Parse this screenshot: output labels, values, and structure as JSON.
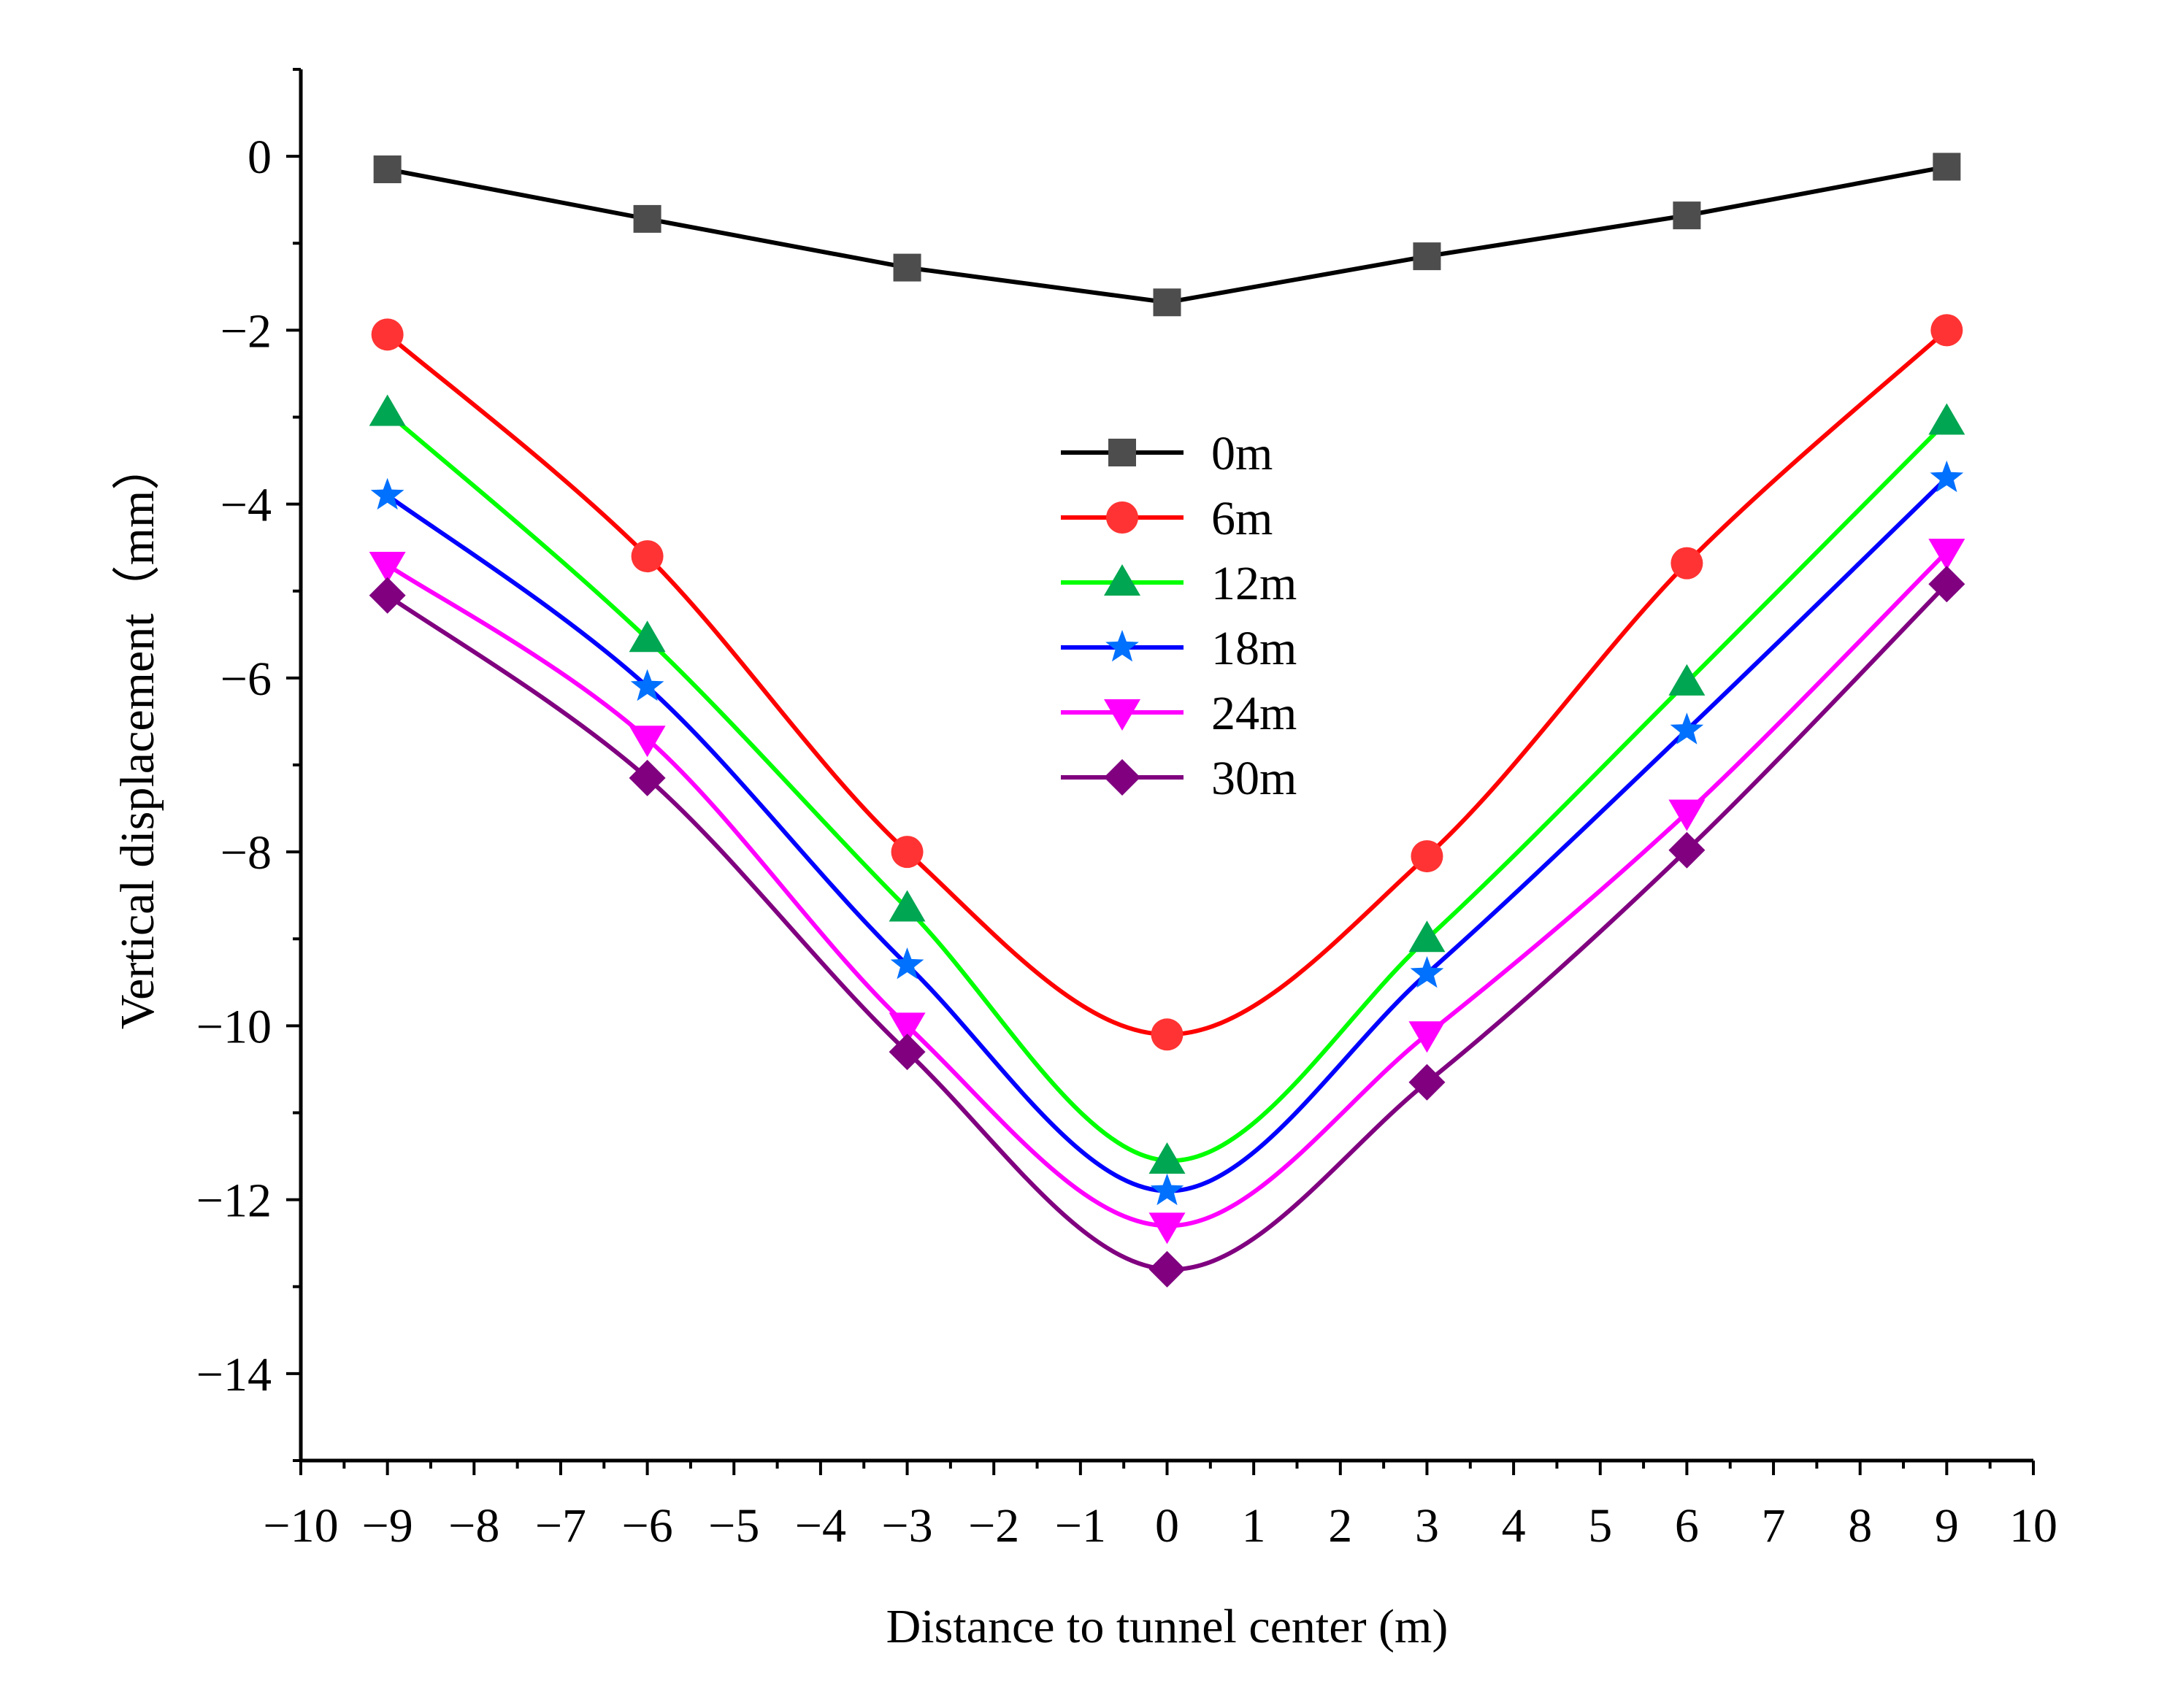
{
  "chart_data": {
    "type": "line",
    "title": "",
    "xlabel": "Distance to tunnel center (m)",
    "ylabel": "Vertical displacement（mm）",
    "xlim": [
      -10,
      10
    ],
    "ylim": [
      -15,
      1
    ],
    "xticks": [
      -10,
      -9,
      -8,
      -7,
      -6,
      -5,
      -4,
      -3,
      -2,
      -1,
      0,
      1,
      2,
      3,
      4,
      5,
      6,
      7,
      8,
      9,
      10
    ],
    "xtick_labels": [
      "−10",
      "−9",
      "−8",
      "−7",
      "−6",
      "−5",
      "−4",
      "−3",
      "−2",
      "−1",
      "0",
      "1",
      "2",
      "3",
      "4",
      "5",
      "6",
      "7",
      "8",
      "9",
      "10"
    ],
    "yticks": [
      0,
      -2,
      -4,
      -6,
      -8,
      -10,
      -12,
      -14
    ],
    "ytick_labels": [
      "0",
      "−2",
      "−4",
      "−6",
      "−8",
      "−10",
      "−12",
      "−14"
    ],
    "grid": false,
    "legend_position": "center",
    "x": [
      -9,
      -6,
      -3,
      0,
      3,
      6,
      9
    ],
    "series": [
      {
        "name": "0m",
        "color": "#000000",
        "marker_color": "#4d4d4d",
        "marker": "square",
        "values": [
          -0.15,
          -0.72,
          -1.28,
          -1.68,
          -1.15,
          -0.68,
          -0.12
        ]
      },
      {
        "name": "6m",
        "color": "#ff0000",
        "marker_color": "#ff3333",
        "marker": "circle",
        "values": [
          -2.05,
          -4.6,
          -8.0,
          -10.1,
          -8.05,
          -4.68,
          -2.0
        ]
      },
      {
        "name": "12m",
        "color": "#00ff00",
        "marker_color": "#00a651",
        "marker": "triangle-up",
        "values": [
          -2.95,
          -5.55,
          -8.65,
          -11.55,
          -9.0,
          -6.05,
          -3.05
        ]
      },
      {
        "name": "18m",
        "color": "#0000ff",
        "marker_color": "#0070ff",
        "marker": "star",
        "values": [
          -3.9,
          -6.1,
          -9.3,
          -11.9,
          -9.4,
          -6.6,
          -3.7
        ]
      },
      {
        "name": "24m",
        "color": "#ff00ff",
        "marker_color": "#ff00ff",
        "marker": "triangle-down",
        "values": [
          -4.7,
          -6.7,
          -10.0,
          -12.3,
          -10.1,
          -7.55,
          -4.55
        ]
      },
      {
        "name": "30m",
        "color": "#800080",
        "marker_color": "#800080",
        "marker": "diamond",
        "values": [
          -5.05,
          -7.15,
          -10.3,
          -12.8,
          -10.65,
          -7.98,
          -4.92
        ]
      }
    ]
  }
}
